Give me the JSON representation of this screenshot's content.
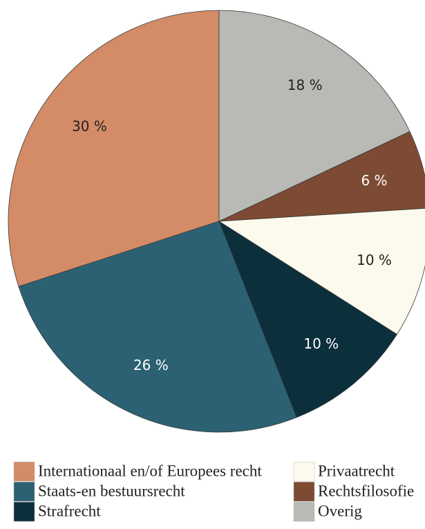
{
  "chart_data": {
    "type": "pie",
    "categories": [
      "Internationaal en/of Europees recht",
      "Staats-en bestuursrecht",
      "Strafrecht",
      "Privaatrecht",
      "Rechtsfilosofie",
      "Overig"
    ],
    "values": [
      30,
      26,
      10,
      10,
      6,
      18
    ],
    "value_labels": [
      "30 %",
      "26 %",
      "10 %",
      "10 %",
      "6 %",
      "18 %"
    ],
    "colors": [
      "#d38c67",
      "#2c6173",
      "#0b2f3b",
      "#fbfaec",
      "#7d4a33",
      "#b9bab6"
    ],
    "legend": "bottom"
  }
}
